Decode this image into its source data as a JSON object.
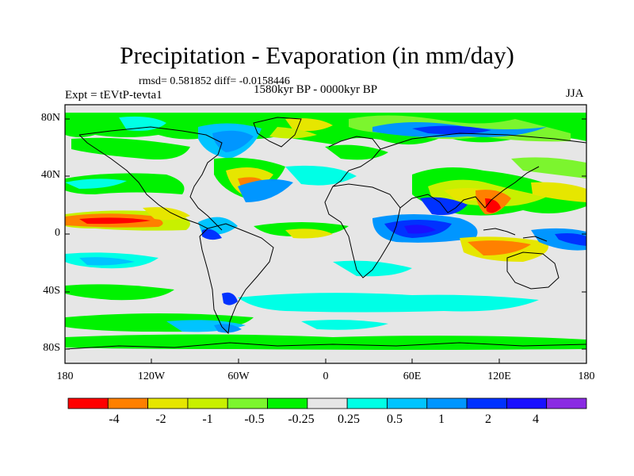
{
  "title": "Precipitation - Evaporation (in mm/day)",
  "stats": "rmsd= 0.581852 diff= -0.0158446",
  "experiment": "Expt = tEVtP-tevta1",
  "period": "1580kyr BP - 0000kyr BP",
  "season": "JJA",
  "map": {
    "projection": "cylindrical equidistant",
    "ocean_background": "#e6e6e6",
    "coastline_color": "#000000",
    "lat_ticks": [
      "80N",
      "40N",
      "0",
      "40S",
      "80S"
    ],
    "lon_ticks": [
      "180",
      "120W",
      "60W",
      "0",
      "60E",
      "120E",
      "180"
    ]
  },
  "colorbar": {
    "colors": [
      "#ff0000",
      "#ff8000",
      "#e6e600",
      "#c8f000",
      "#7cf52e",
      "#00f200",
      "#e6e6e6",
      "#00ffe6",
      "#00c4ff",
      "#0096ff",
      "#0032ff",
      "#1a10ff",
      "#8a2be2"
    ],
    "labels": [
      "-4",
      "-2",
      "-1",
      "-0.5",
      "-0.25",
      "0.25",
      "0.5",
      "1",
      "2",
      "4"
    ]
  }
}
